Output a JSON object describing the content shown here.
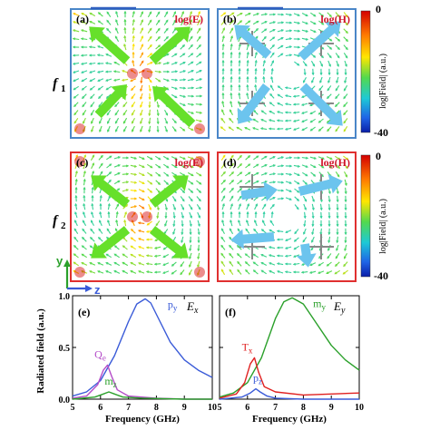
{
  "field_panels": [
    {
      "id": "a",
      "letter": "(a)",
      "tag": "log(E)",
      "kind": "E",
      "row": "f1"
    },
    {
      "id": "b",
      "letter": "(b)",
      "tag": "log(H)",
      "kind": "H",
      "row": "f1"
    },
    {
      "id": "c",
      "letter": "(c)",
      "tag": "log(E)",
      "kind": "E",
      "row": "f2"
    },
    {
      "id": "d",
      "letter": "(d)",
      "tag": "log(H)",
      "kind": "H",
      "row": "f2"
    }
  ],
  "row_labels": {
    "f1_main": "f",
    "f1_sub": "1",
    "f2_main": "f",
    "f2_sub": "2"
  },
  "colorbar": {
    "top": "0",
    "bottom": "-40",
    "label": "log|Field| (a.u.)"
  },
  "coords": {
    "y": "y",
    "z": "z"
  },
  "colors": {
    "row1_frame": "#4a86c8",
    "row2_frame": "#e03030",
    "green_arrow": "#66e02a",
    "blue_arrow": "#6cc4ee",
    "py": "#3a5bd8",
    "qe": "#b44cc8",
    "m_green": "#2aa02a",
    "my": "#2aa02a",
    "tx": "#e02020",
    "pz": "#3a5bd8"
  },
  "chart_data": [
    {
      "type": "line",
      "panel": "(e)",
      "component": "E",
      "component_sub": "x",
      "xlabel": "Frequency (GHz)",
      "ylabel": "Radiated field (a.u.)",
      "xlim": [
        5,
        10
      ],
      "ylim": [
        0,
        1.0
      ],
      "xticks": [
        "5",
        "6",
        "7",
        "8",
        "9",
        "10"
      ],
      "yticks": [
        "0.0",
        "0.5",
        "1.0"
      ],
      "series": [
        {
          "name": "p",
          "sub": "y",
          "color": "#3a5bd8",
          "x": [
            5.0,
            5.5,
            6.0,
            6.5,
            7.0,
            7.3,
            7.6,
            7.8,
            8.0,
            8.5,
            9.0,
            9.5,
            10.0
          ],
          "y": [
            0.03,
            0.07,
            0.18,
            0.42,
            0.75,
            0.92,
            0.97,
            0.93,
            0.82,
            0.55,
            0.38,
            0.28,
            0.21
          ]
        },
        {
          "name": "Q",
          "sub": "e",
          "color": "#b44cc8",
          "x": [
            5.0,
            5.5,
            5.9,
            6.1,
            6.25,
            6.4,
            6.6,
            7.0,
            8.0,
            9.0,
            10.0
          ],
          "y": [
            0.01,
            0.03,
            0.14,
            0.28,
            0.33,
            0.22,
            0.09,
            0.03,
            0.01,
            0.0,
            0.0
          ]
        },
        {
          "name": "m",
          "sub": "z",
          "color": "#2aa02a",
          "x": [
            5.0,
            5.8,
            6.1,
            6.3,
            6.5,
            6.8,
            7.5,
            9.0,
            10.0
          ],
          "y": [
            0.0,
            0.02,
            0.05,
            0.07,
            0.05,
            0.02,
            0.01,
            0.0,
            0.0
          ]
        }
      ]
    },
    {
      "type": "line",
      "panel": "(f)",
      "component": "E",
      "component_sub": "y",
      "xlabel": "Frequency (GHz)",
      "xlim": [
        5,
        10
      ],
      "ylim": [
        0,
        1.0
      ],
      "xticks": [
        "5",
        "6",
        "7",
        "8",
        "9",
        "10"
      ],
      "series": [
        {
          "name": "m",
          "sub": "y",
          "color": "#2aa02a",
          "x": [
            5.0,
            5.5,
            6.0,
            6.5,
            7.0,
            7.3,
            7.6,
            8.0,
            8.5,
            9.0,
            9.5,
            10.0
          ],
          "y": [
            0.02,
            0.06,
            0.16,
            0.4,
            0.78,
            0.94,
            0.98,
            0.92,
            0.72,
            0.52,
            0.38,
            0.28
          ]
        },
        {
          "name": "T",
          "sub": "x",
          "color": "#e02020",
          "x": [
            5.0,
            5.6,
            5.9,
            6.1,
            6.25,
            6.4,
            6.6,
            7.0,
            8.0,
            9.0,
            10.0
          ],
          "y": [
            0.01,
            0.05,
            0.16,
            0.34,
            0.4,
            0.26,
            0.12,
            0.07,
            0.04,
            0.05,
            0.06
          ]
        },
        {
          "name": "p",
          "sub": "z",
          "color": "#3a5bd8",
          "x": [
            5.0,
            5.8,
            6.1,
            6.3,
            6.45,
            6.7,
            7.0,
            8.0,
            10.0
          ],
          "y": [
            0.0,
            0.02,
            0.06,
            0.1,
            0.07,
            0.03,
            0.01,
            0.0,
            0.0
          ]
        }
      ]
    }
  ]
}
